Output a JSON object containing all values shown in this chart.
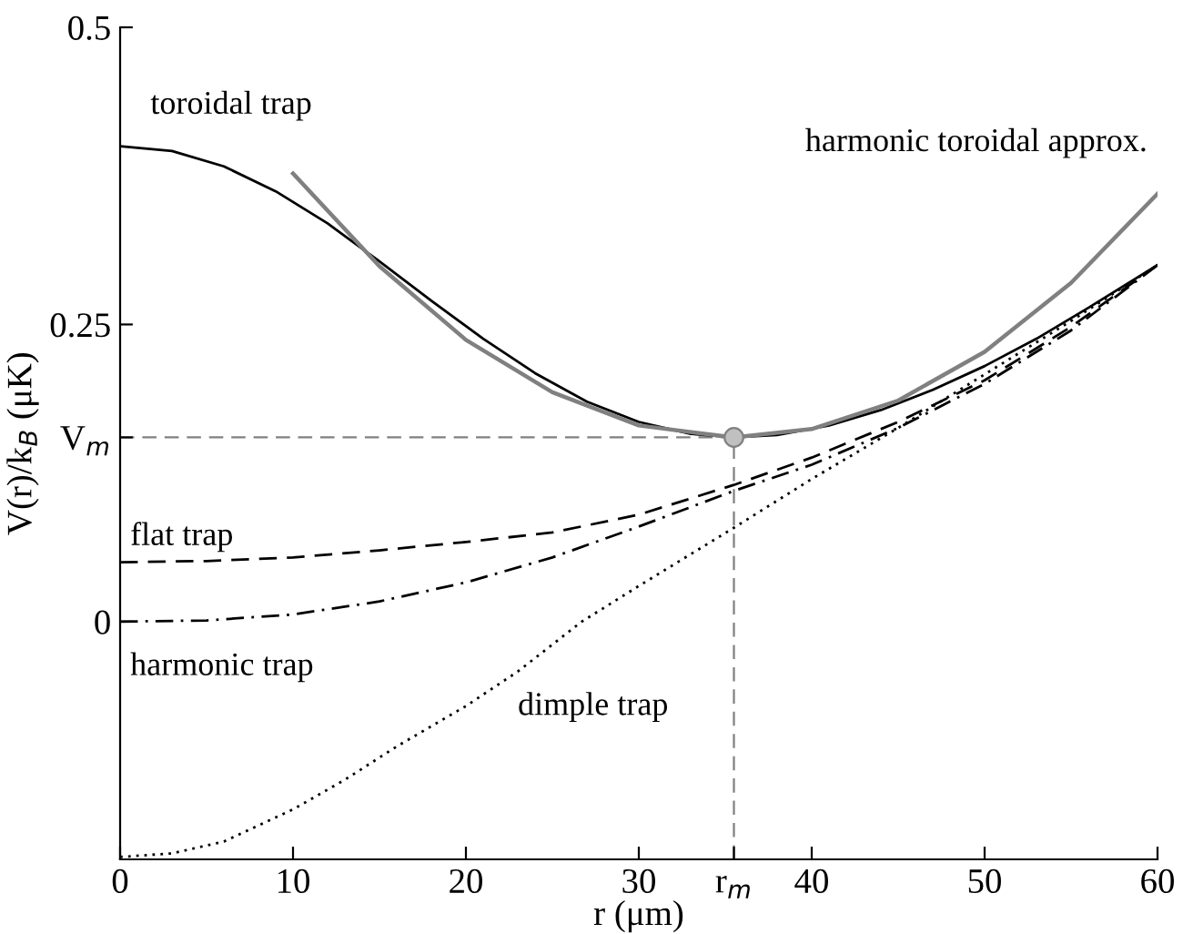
{
  "chart_data": {
    "type": "line",
    "xlabel": "r (μm)",
    "ylabel": "V(r)/k$_{B}$ (μK)",
    "xlim": [
      0,
      60
    ],
    "ylim": [
      -0.2,
      0.5
    ],
    "xticks": [
      0,
      10,
      20,
      30,
      {
        "value": 35.5,
        "label": "r$_{m}$"
      },
      40,
      50,
      60
    ],
    "yticks": [
      0,
      {
        "value": 0.155,
        "label": "V$_{m}$"
      },
      0.25,
      0.5
    ],
    "grid": false,
    "legend": false,
    "series": [
      {
        "name": "toroidal trap",
        "color": "#000000",
        "line_style": "solid",
        "x": [
          0,
          3,
          6,
          9,
          12,
          15,
          18,
          21,
          24,
          27,
          30,
          33,
          35.5,
          38,
          41,
          44,
          47,
          50,
          53,
          56,
          60
        ],
        "values": [
          0.4,
          0.396,
          0.383,
          0.362,
          0.335,
          0.303,
          0.27,
          0.238,
          0.209,
          0.185,
          0.168,
          0.158,
          0.155,
          0.157,
          0.165,
          0.178,
          0.195,
          0.215,
          0.238,
          0.264,
          0.3
        ]
      },
      {
        "name": "harmonic toroidal approx.",
        "color": "#808080",
        "line_style": "solid",
        "x": [
          10,
          15,
          20,
          25,
          30,
          35.5,
          40,
          45,
          50,
          55,
          60
        ],
        "values": [
          0.377,
          0.299,
          0.237,
          0.193,
          0.165,
          0.155,
          0.162,
          0.186,
          0.227,
          0.285,
          0.36
        ]
      },
      {
        "name": "flat trap",
        "color": "#000000",
        "line_style": "dashed",
        "x": [
          0,
          5,
          10,
          15,
          20,
          25,
          30,
          35.5,
          40,
          45,
          50,
          55,
          60
        ],
        "values": [
          0.05,
          0.051,
          0.054,
          0.06,
          0.067,
          0.075,
          0.09,
          0.115,
          0.138,
          0.168,
          0.203,
          0.248,
          0.3
        ]
      },
      {
        "name": "harmonic trap",
        "color": "#000000",
        "line_style": "dashdot",
        "x": [
          0,
          5,
          10,
          15,
          20,
          25,
          30,
          35.5,
          40,
          45,
          50,
          55,
          60
        ],
        "values": [
          0,
          0.001,
          0.006,
          0.017,
          0.033,
          0.054,
          0.08,
          0.11,
          0.132,
          0.163,
          0.2,
          0.245,
          0.3
        ]
      },
      {
        "name": "dimple trap",
        "color": "#000000",
        "line_style": "dotted",
        "x": [
          0,
          3,
          6,
          10,
          13,
          16,
          20,
          23,
          26.7,
          30,
          35.5,
          40,
          45,
          50,
          55,
          60
        ],
        "values": [
          -0.198,
          -0.195,
          -0.185,
          -0.158,
          -0.133,
          -0.105,
          -0.071,
          -0.042,
          0.0,
          0.03,
          0.079,
          0.12,
          0.163,
          0.208,
          0.253,
          0.3
        ]
      },
      {
        "type": "scatter",
        "color": "#c0c0c0",
        "marker": "circle",
        "x": [
          35.5
        ],
        "values": [
          0.155
        ]
      }
    ],
    "ref_lines": [
      {
        "axis": "y",
        "value": 0.155,
        "color": "#808080",
        "line_style": "dashed"
      },
      {
        "axis": "x",
        "value": 35.5,
        "color": "#808080",
        "line_style": "dashed"
      }
    ]
  }
}
